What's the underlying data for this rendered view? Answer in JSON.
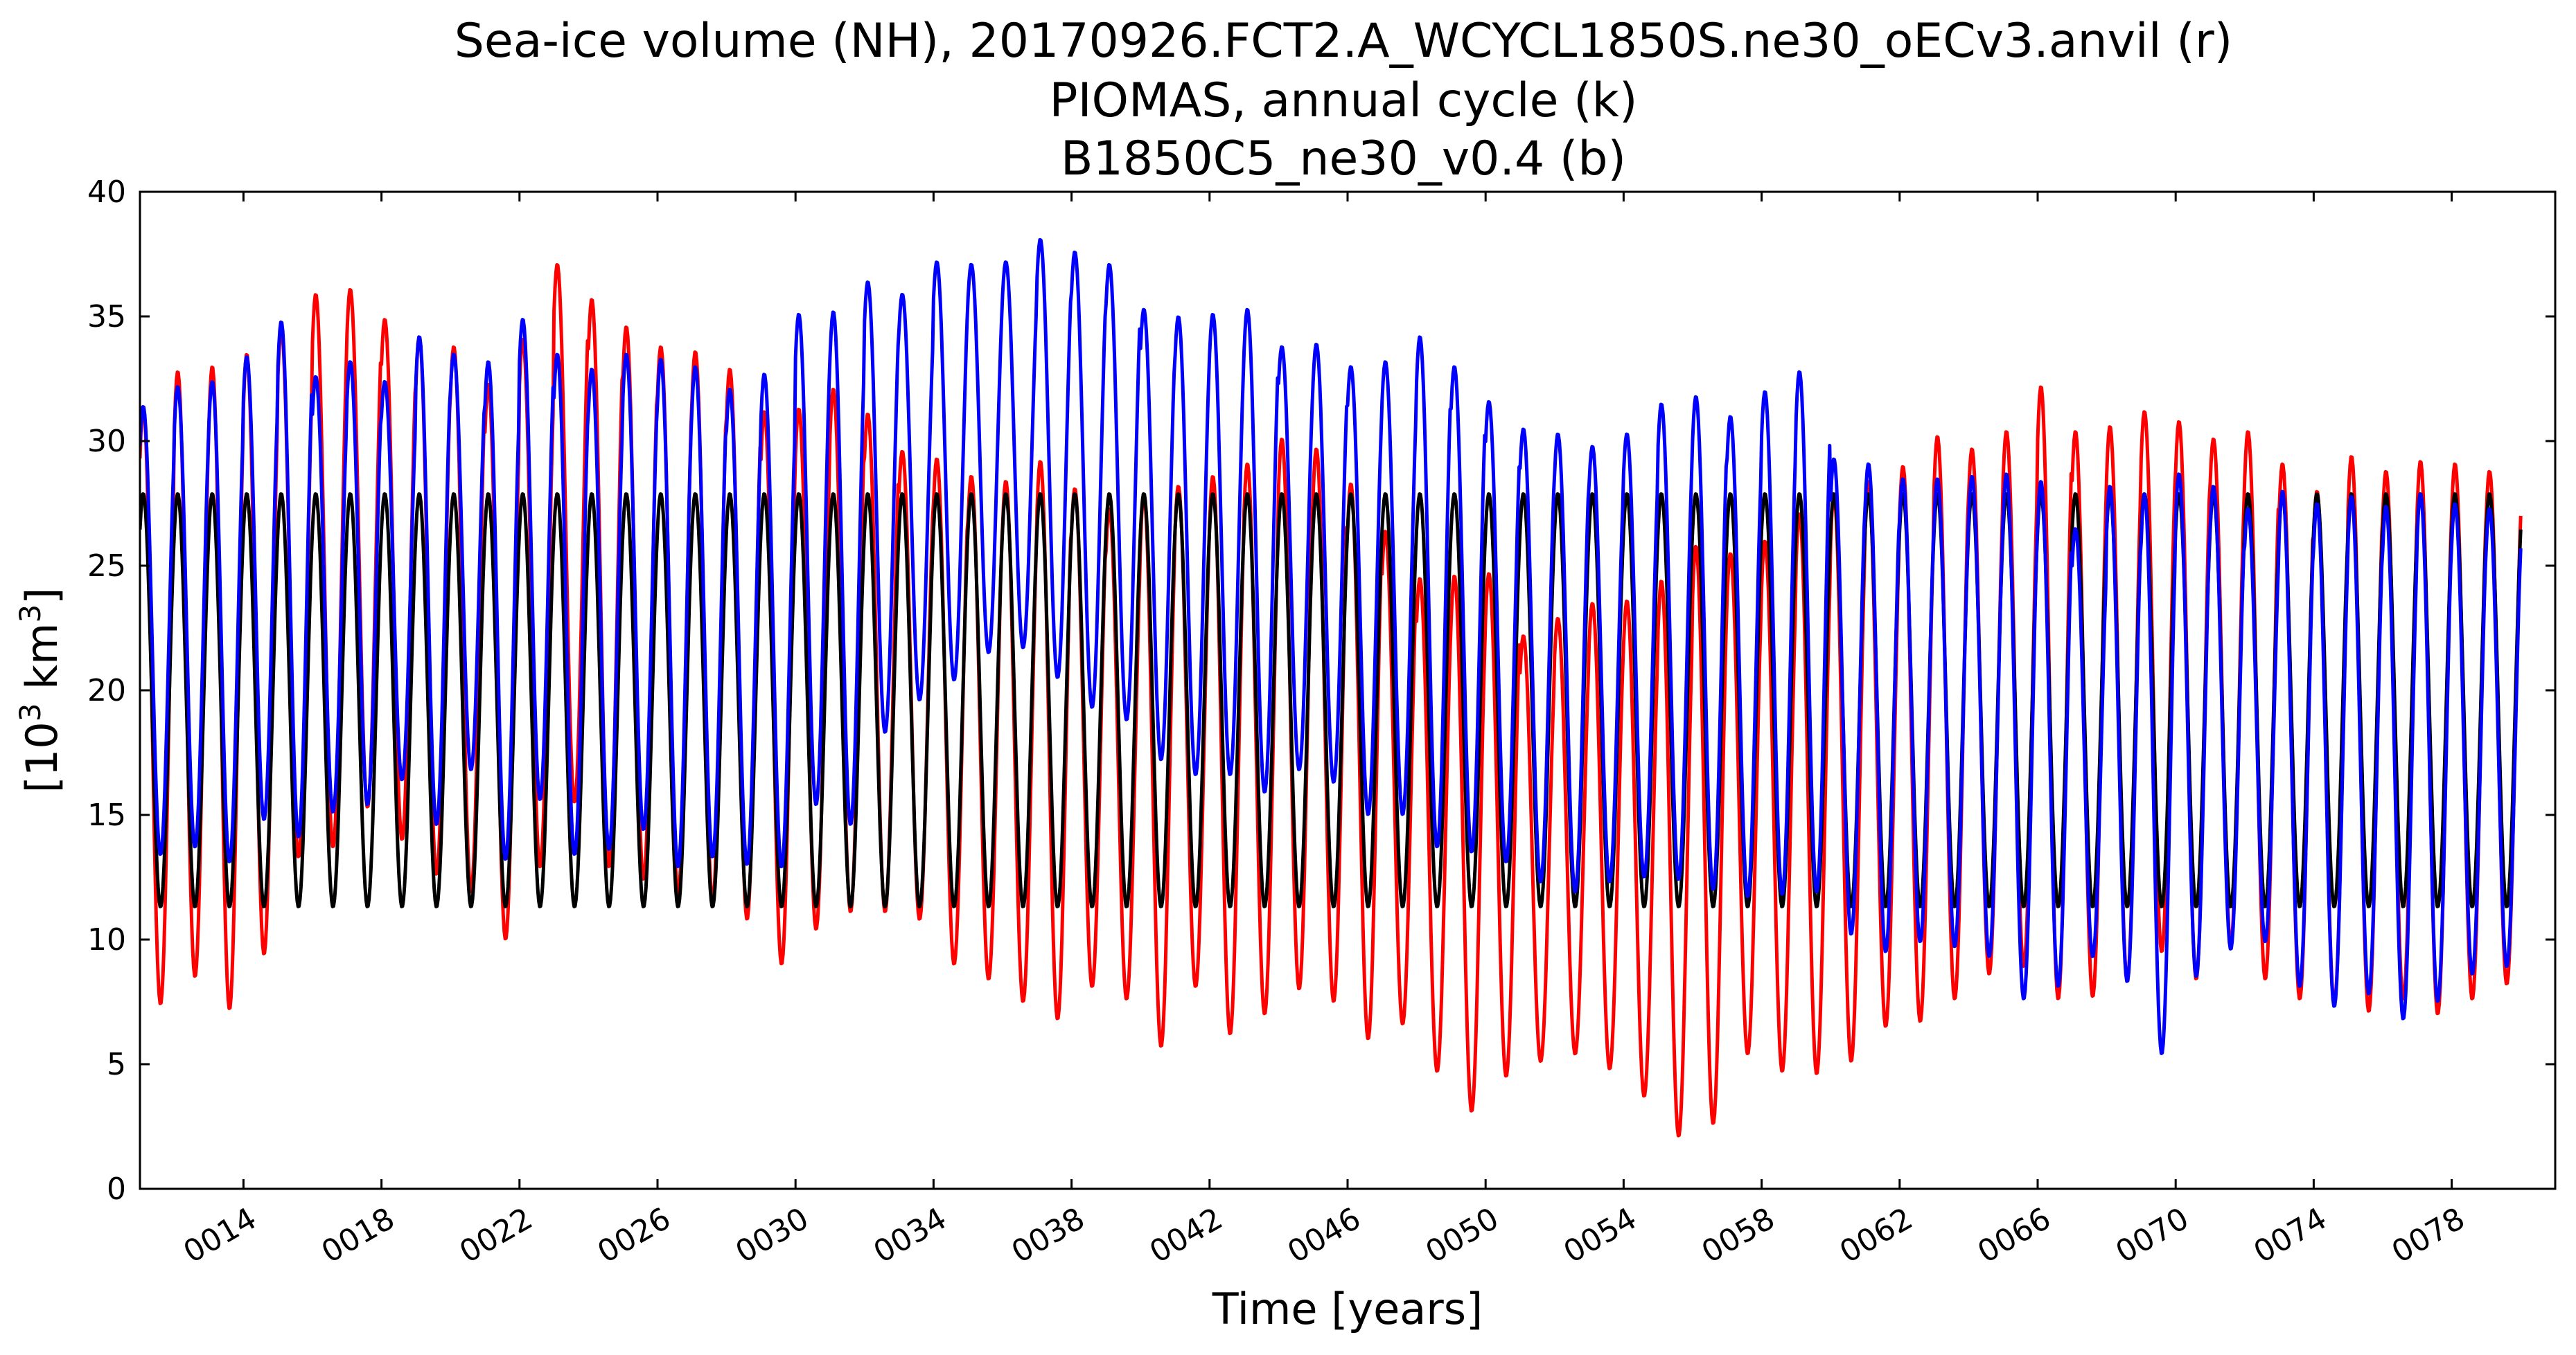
{
  "chart_data": {
    "type": "line",
    "title": [
      "Sea-ice volume (NH), 20170926.FCT2.A_WCYCL1850S.ne30_oECv3.anvil (r)",
      "PIOMAS, annual cycle (k)",
      "B1850C5_ne30_v0.4 (b)"
    ],
    "xlabel": "Time [years]",
    "ylabel_main": "[10",
    "ylabel_sup1": "3",
    "ylabel_mid": " km",
    "ylabel_sup2": "3",
    "ylabel_end": "]",
    "xlim": [
      11,
      81
    ],
    "ylim": [
      0,
      40
    ],
    "yticks": [
      0,
      5,
      10,
      15,
      20,
      25,
      30,
      35,
      40
    ],
    "xticks": [
      14,
      18,
      22,
      26,
      30,
      34,
      38,
      42,
      46,
      50,
      54,
      58,
      62,
      66,
      70,
      74,
      78
    ],
    "xtick_labels": [
      "0014",
      "0018",
      "0022",
      "0026",
      "0030",
      "0034",
      "0038",
      "0042",
      "0046",
      "0050",
      "0054",
      "0058",
      "0062",
      "0066",
      "0070",
      "0074",
      "0078"
    ],
    "grid": false,
    "legend": "none",
    "series": [
      {
        "color": "#ff0000",
        "start_year": 11,
        "annual_max": [
          31.4,
          32.8,
          33.0,
          33.5,
          34.5,
          35.9,
          36.1,
          34.9,
          34.2,
          33.8,
          32.3,
          34.1,
          37.1,
          35.7,
          34.6,
          33.8,
          33.6,
          32.9,
          31.2,
          31.3,
          32.1,
          31.1,
          29.6,
          29.3,
          28.6,
          28.4,
          29.2,
          28.1,
          27.3,
          27.9,
          28.2,
          28.6,
          29.1,
          30.1,
          29.7,
          28.3,
          26.4,
          24.5,
          24.6,
          24.7,
          22.2,
          22.9,
          23.5,
          23.6,
          24.4,
          25.8,
          25.5,
          26.0,
          27.1,
          27.9,
          28.4,
          29.0,
          30.2,
          29.7,
          30.4,
          32.2,
          30.4,
          30.6,
          31.2,
          30.8,
          30.1,
          30.4,
          29.1,
          28.0,
          29.4,
          28.8,
          29.2,
          29.1,
          28.8
        ],
        "annual_min": [
          7.4,
          8.5,
          7.2,
          9.4,
          13.3,
          13.7,
          15.3,
          14.0,
          12.6,
          11.9,
          10.0,
          12.9,
          15.5,
          12.9,
          12.4,
          11.8,
          11.5,
          10.8,
          9.0,
          10.4,
          11.1,
          11.1,
          10.8,
          9.0,
          8.4,
          7.5,
          6.8,
          8.1,
          7.6,
          5.7,
          8.1,
          6.2,
          7.0,
          8.0,
          7.5,
          6.0,
          6.6,
          4.7,
          3.1,
          4.5,
          5.1,
          5.4,
          4.8,
          3.7,
          2.1,
          2.6,
          5.4,
          4.7,
          4.6,
          5.1,
          6.5,
          6.7,
          7.6,
          8.6,
          8.9,
          7.6,
          7.7,
          8.3,
          9.5,
          8.4,
          9.8,
          8.4,
          7.6,
          7.4,
          7.1,
          7.6,
          7.0,
          7.6,
          8.2
        ]
      },
      {
        "color": "#000000",
        "start_year": 11,
        "annual_max": [
          27.9,
          27.9,
          27.9,
          27.9,
          27.9,
          27.9,
          27.9,
          27.9,
          27.9,
          27.9,
          27.9,
          27.9,
          27.9,
          27.9,
          27.9,
          27.9,
          27.9,
          27.9,
          27.9,
          27.9,
          27.9,
          27.9,
          27.9,
          27.9,
          27.9,
          27.9,
          27.9,
          27.9,
          27.9,
          27.9,
          27.9,
          27.9,
          27.9,
          27.9,
          27.9,
          27.9,
          27.9,
          27.9,
          27.9,
          27.9,
          27.9,
          27.9,
          27.9,
          27.9,
          27.9,
          27.9,
          27.9,
          27.9,
          27.9,
          27.9,
          27.9,
          27.9,
          27.9,
          27.9,
          27.9,
          27.9,
          27.9,
          27.9,
          27.9,
          27.9,
          27.9,
          27.9,
          27.9,
          27.9,
          27.9,
          27.9,
          27.9,
          27.9,
          27.9
        ],
        "annual_min": [
          11.3,
          11.3,
          11.3,
          11.3,
          11.3,
          11.3,
          11.3,
          11.3,
          11.3,
          11.3,
          11.3,
          11.3,
          11.3,
          11.3,
          11.3,
          11.3,
          11.3,
          11.3,
          11.3,
          11.3,
          11.3,
          11.3,
          11.3,
          11.3,
          11.3,
          11.3,
          11.3,
          11.3,
          11.3,
          11.3,
          11.3,
          11.3,
          11.3,
          11.3,
          11.3,
          11.3,
          11.3,
          11.3,
          11.3,
          11.3,
          11.3,
          11.3,
          11.3,
          11.3,
          11.3,
          11.3,
          11.3,
          11.3,
          11.3,
          11.3,
          11.3,
          11.3,
          11.3,
          11.3,
          11.3,
          11.3,
          11.3,
          11.3,
          11.3,
          11.3,
          11.3,
          11.3,
          11.3,
          11.3,
          11.3,
          11.3,
          11.3,
          11.3,
          11.3
        ]
      },
      {
        "color": "#0000ff",
        "start_year": 11,
        "annual_max": [
          31.4,
          32.2,
          32.4,
          33.4,
          34.8,
          32.6,
          33.2,
          32.4,
          34.2,
          33.5,
          33.2,
          34.9,
          33.5,
          32.9,
          33.5,
          33.3,
          33.0,
          32.1,
          32.7,
          35.1,
          35.2,
          36.4,
          35.9,
          37.2,
          37.1,
          37.2,
          38.1,
          37.6,
          37.1,
          35.3,
          35.0,
          35.1,
          35.3,
          33.8,
          33.9,
          33.0,
          33.2,
          34.2,
          33.0,
          31.6,
          30.5,
          30.3,
          29.8,
          30.3,
          31.5,
          31.8,
          31.0,
          32.0,
          32.8,
          29.3,
          29.1,
          28.5,
          28.5,
          28.6,
          28.7,
          28.4,
          26.5,
          28.2,
          27.9,
          28.7,
          28.2,
          27.3,
          28.0,
          27.5,
          27.8,
          27.4,
          27.9,
          27.5,
          27.3
        ],
        "annual_min": [
          13.4,
          13.7,
          13.1,
          14.8,
          14.1,
          15.1,
          15.4,
          16.4,
          14.6,
          16.8,
          13.2,
          15.6,
          13.4,
          13.6,
          14.4,
          12.9,
          13.3,
          13.0,
          12.9,
          15.4,
          14.6,
          18.3,
          19.6,
          20.4,
          21.5,
          21.7,
          20.5,
          19.3,
          18.8,
          17.2,
          16.6,
          16.6,
          15.9,
          16.8,
          16.3,
          15.0,
          15.0,
          13.7,
          13.5,
          13.1,
          12.3,
          11.9,
          12.3,
          12.5,
          12.4,
          12.0,
          11.7,
          11.8,
          11.9,
          10.2,
          9.5,
          9.9,
          9.7,
          9.3,
          7.6,
          8.1,
          9.3,
          8.3,
          5.4,
          8.5,
          9.6,
          9.9,
          8.1,
          7.3,
          7.8,
          6.8,
          7.5,
          8.6,
          8.9
        ]
      }
    ]
  }
}
